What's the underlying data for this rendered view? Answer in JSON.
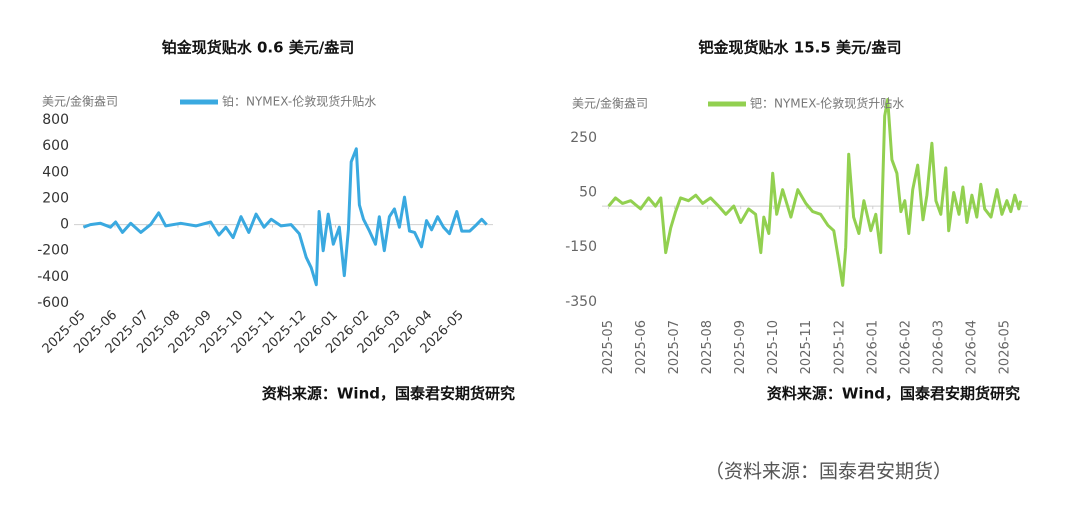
{
  "chart_data": [
    {
      "type": "line",
      "title": "铂金现货贴水 0.6 美元/盎司",
      "y_label": "美元/金衡盎司",
      "source": "资料来源：Wind，国泰君安期货研究",
      "x": [
        0,
        0.22,
        0.54,
        0.86,
        1.02,
        1.24,
        1.5,
        1.82,
        2.13,
        2.39,
        2.61,
        3.09,
        3.57,
        4.04,
        4.3,
        4.52,
        4.75,
        5,
        5.25,
        5.48,
        5.73,
        5.96,
        6.27,
        6.59,
        6.85,
        7.07,
        7.23,
        7.39,
        7.48,
        7.61,
        7.77,
        7.93,
        8.12,
        8.28,
        8.41,
        8.5,
        8.66,
        8.76,
        8.89,
        9.08,
        9.27,
        9.39,
        9.55,
        9.71,
        9.87,
        10.03,
        10.19,
        10.35,
        10.51,
        10.73,
        10.89,
        11.05,
        11.24,
        11.43,
        11.62,
        11.85,
        12.01,
        12.26,
        12.48,
        12.64,
        12.8
      ],
      "series": [
        {
          "name": "铂：NYMEX-伦敦现货升贴水",
          "color": "#3aa9e0",
          "values": [
            -20,
            0,
            10,
            -20,
            20,
            -60,
            10,
            -60,
            0,
            90,
            -10,
            10,
            -10,
            20,
            -80,
            -20,
            -100,
            60,
            -60,
            80,
            -20,
            40,
            -10,
            0,
            -70,
            -250,
            -330,
            -460,
            100,
            -200,
            80,
            -150,
            -20,
            -390,
            -40,
            480,
            580,
            150,
            40,
            -50,
            -150,
            60,
            -200,
            60,
            120,
            -20,
            210,
            -50,
            -60,
            -170,
            30,
            -40,
            60,
            -20,
            -70,
            100,
            -50,
            -50,
            0,
            40,
            0
          ]
        }
      ],
      "xlim": [
        -0.3,
        13
      ],
      "ylim": [
        -600,
        800
      ],
      "xticks": [
        {
          "value": 0,
          "label": "2025-05"
        },
        {
          "value": 1,
          "label": "2025-06"
        },
        {
          "value": 2,
          "label": "2025-07"
        },
        {
          "value": 3,
          "label": "2025-08"
        },
        {
          "value": 4,
          "label": "2025-09"
        },
        {
          "value": 5,
          "label": "2025-10"
        },
        {
          "value": 6,
          "label": "2025-11"
        },
        {
          "value": 7,
          "label": "2025-12"
        },
        {
          "value": 8,
          "label": "2026-01"
        },
        {
          "value": 9,
          "label": "2026-02"
        },
        {
          "value": 10,
          "label": "2026-03"
        },
        {
          "value": 11,
          "label": "2026-04"
        },
        {
          "value": 12,
          "label": "2026-05"
        }
      ],
      "yticks": [
        -600,
        -400,
        -200,
        0,
        200,
        400,
        600,
        800
      ]
    },
    {
      "type": "line",
      "title": "钯金现货贴水 15.5 美元/盎司",
      "y_label": "美元/金衡盎司",
      "source": "资料来源：Wind，国泰君安期货研究",
      "x": [
        0,
        0.21,
        0.42,
        0.67,
        0.97,
        1.21,
        1.42,
        1.58,
        1.73,
        1.88,
        2.03,
        2.18,
        2.42,
        2.64,
        2.85,
        3.09,
        3.33,
        3.55,
        3.79,
        4,
        4.24,
        4.45,
        4.61,
        4.7,
        4.85,
        4.97,
        5.09,
        5.27,
        5.52,
        5.73,
        5.97,
        6.18,
        6.42,
        6.64,
        6.82,
        6.97,
        7.09,
        7.18,
        7.27,
        7.42,
        7.58,
        7.73,
        7.94,
        8.09,
        8.24,
        8.36,
        8.45,
        8.58,
        8.73,
        8.85,
        8.97,
        9.09,
        9.21,
        9.36,
        9.52,
        9.64,
        9.79,
        9.91,
        10.06,
        10.21,
        10.3,
        10.45,
        10.61,
        10.73,
        10.85,
        11,
        11.15,
        11.27,
        11.39,
        11.58,
        11.76,
        11.91,
        12.06,
        12.18,
        12.3,
        12.42,
        12.48
      ],
      "series": [
        {
          "name": "钯：NYMEX-伦敦现货升贴水",
          "color": "#92d050",
          "values": [
            0,
            30,
            10,
            20,
            -10,
            30,
            0,
            30,
            -170,
            -80,
            -20,
            30,
            20,
            40,
            10,
            30,
            0,
            -30,
            0,
            -60,
            -10,
            -30,
            -170,
            -40,
            -100,
            120,
            -30,
            60,
            -40,
            60,
            10,
            -20,
            -30,
            -70,
            -90,
            -200,
            -290,
            -150,
            190,
            -40,
            -100,
            20,
            -90,
            -30,
            -170,
            330,
            390,
            170,
            120,
            -20,
            20,
            -100,
            60,
            150,
            -50,
            40,
            230,
            20,
            -30,
            140,
            -90,
            50,
            -30,
            70,
            -60,
            40,
            -40,
            80,
            -10,
            -40,
            60,
            -30,
            20,
            -20,
            40,
            -10,
            20
          ]
        }
      ],
      "xlim": [
        -0.2,
        12.7
      ],
      "ylim": [
        -380,
        370
      ],
      "xticks": [
        {
          "value": 0,
          "label": "2025-05"
        },
        {
          "value": 1,
          "label": "2025-06"
        },
        {
          "value": 2,
          "label": "2025-07"
        },
        {
          "value": 3,
          "label": "2025-08"
        },
        {
          "value": 4,
          "label": "2025-09"
        },
        {
          "value": 5,
          "label": "2025-10"
        },
        {
          "value": 6,
          "label": "2025-11"
        },
        {
          "value": 7,
          "label": "2025-12"
        },
        {
          "value": 8,
          "label": "2026-01"
        },
        {
          "value": 9,
          "label": "2026-02"
        },
        {
          "value": 10,
          "label": "2026-03"
        },
        {
          "value": 11,
          "label": "2026-04"
        },
        {
          "value": 12,
          "label": "2026-05"
        }
      ],
      "yticks": [
        -350,
        -150,
        50,
        250
      ]
    }
  ],
  "caption": "（资料来源：国泰君安期货）"
}
